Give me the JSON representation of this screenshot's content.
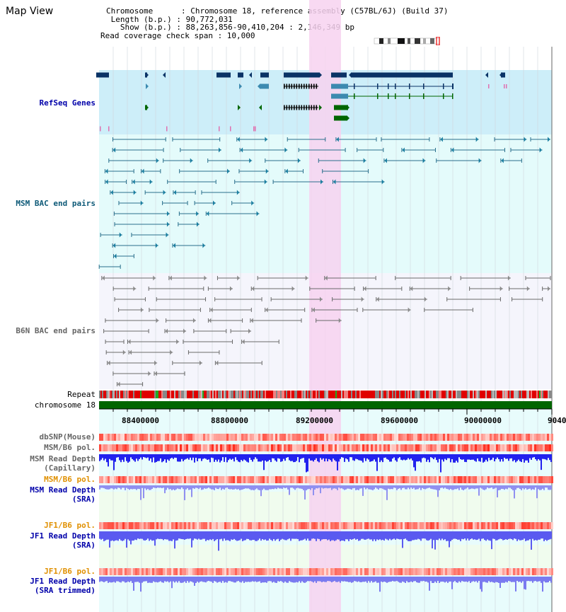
{
  "page": {
    "title": "Map View"
  },
  "info": {
    "chromosome_line": "Chromosome      : Chromosome 18, reference assembly (C57BL/6J) (Build 37)",
    "length_line": " Length (b.p.) : 90,772,031",
    "show_line": "   Show (b.p.) : 88,263,856-90,410,204 : 2,146,349 bp",
    "coverage_line": "Read coverage check span : 10,000"
  },
  "tracks": {
    "refseq": "RefSeq Genes",
    "msm_bac": "MSM BAC end pairs",
    "b6n_bac": "B6N BAC end pairs",
    "repeat": "Repeat",
    "chromosome": "chromosome 18",
    "dbsnp": "dbSNP(Mouse)",
    "msm_b6_pol_1": "MSM/B6 pol.",
    "msm_read_depth_cap": "MSM Read Depth\n(Capillary)",
    "msm_b6_pol_2": "MSM/B6 pol.",
    "msm_read_depth_sra": "MSM Read Depth\n(SRA)",
    "jf1_b6_pol_1": "JF1/B6 pol.",
    "jf1_read_depth_sra": "JF1 Read Depth\n(SRA)",
    "jf1_b6_pol_2": "JF1/B6 pol.",
    "jf1_read_depth_trim": "JF1 Read Depth\n(SRA trimmed)"
  },
  "axis": {
    "ticks": [
      "88400000",
      "88800000",
      "89200000",
      "89600000",
      "90000000",
      "9040"
    ]
  },
  "colors": {
    "refseq_bg": "#cdeef9",
    "msm_bg": "#e4fbfb",
    "b6n_bg": "#f5f5fc",
    "highlight": "#f7d2f0",
    "lower_bg_cyan": "#e8fcfc",
    "lower_bg_green": "#f0fcee",
    "gene_dark": "#0a3366",
    "gene_mid": "#3c8ab0",
    "gene_green": "#006600",
    "chromosome_bar": "#006600"
  }
}
